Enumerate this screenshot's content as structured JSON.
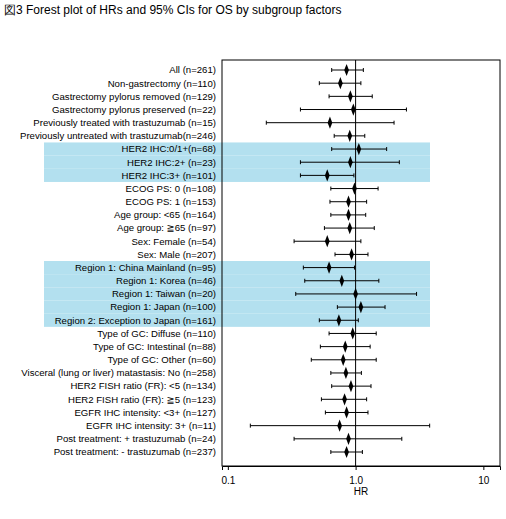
{
  "chart_data": {
    "type": "forest",
    "title": "図3 Forest plot of HRs and 95% CIs for OS by subgroup factors",
    "xlabel": "HR",
    "orientation": "horizontal",
    "log": "x",
    "marker": "diamond",
    "color": "#000000",
    "reference_line": 1,
    "xlim": [
      0.09,
      13.5
    ],
    "xticks": [
      0.1,
      {
        "value": 1,
        "label": "1.0"
      },
      10
    ],
    "categories": [
      "All (n=261)",
      "Non-gastrectomy (n=110)",
      "Gastrectomy pylorus removed (n=129)",
      "Gastrectomy pylorus preserved (n=22)",
      "Previously treated with trastuzumab (n=15)",
      "Previously untreated with trastuzumab(n=246)",
      "HER2 IHC:0/1+(n=68)",
      "HER2 IHC:2+ (n=23)",
      "HER2 IHC:3+ (n=101)",
      "ECOG PS: 0 (n=108)",
      "ECOG PS: 1 (n=153)",
      "Age group: <65 (n=164)",
      "Age group: ≧65 (n=97)",
      "Sex: Female (n=54)",
      "Sex: Male (n=207)",
      "Region 1: China Mainland (n=95)",
      "Region 1: Korea (n=46)",
      "Region 1: Taiwan (n=20)",
      "Region 1: Japan (n=100)",
      "Region 2: Exception to Japan (n=161)",
      "Type of GC: Diffuse (n=110)",
      "Type of GC: Intestinal (n=88)",
      "Type of GC: Other (n=60)",
      "Visceral (lung or liver) matastasis: No (n=258)",
      "HER2 FISH ratio (FR): <5 (n=134)",
      "HER2 FISH ratio (FR): ≧5 (n=123)",
      "EGFR IHC intensity: <3+ (n=127)",
      "EGFR IHC intensity: 3+ (n=11)",
      "Post treatment: + trastuzumab (n=24)",
      "Post treatment: - trastuzumab (n=237)"
    ],
    "values": [
      0.85,
      0.76,
      0.91,
      0.96,
      0.63,
      0.9,
      1.06,
      0.91,
      0.6,
      0.98,
      0.88,
      0.88,
      0.9,
      0.6,
      0.93,
      0.62,
      0.78,
      1.0,
      1.1,
      0.74,
      0.95,
      0.83,
      0.8,
      0.84,
      0.92,
      0.82,
      0.85,
      0.75,
      0.88,
      0.85
    ],
    "lower": [
      0.65,
      0.52,
      0.62,
      0.37,
      0.2,
      0.68,
      0.65,
      0.37,
      0.37,
      0.64,
      0.63,
      0.64,
      0.57,
      0.33,
      0.69,
      0.39,
      0.4,
      0.34,
      0.72,
      0.52,
      0.62,
      0.53,
      0.45,
      0.64,
      0.65,
      0.54,
      0.58,
      0.15,
      0.33,
      0.64
    ],
    "upper": [
      1.15,
      1.1,
      1.35,
      2.5,
      2.0,
      1.18,
      1.75,
      2.2,
      0.97,
      1.5,
      1.22,
      1.2,
      1.4,
      1.1,
      1.25,
      0.98,
      1.52,
      3.0,
      1.7,
      1.05,
      1.45,
      1.3,
      1.45,
      1.11,
      1.32,
      1.22,
      1.25,
      3.8,
      2.3,
      1.13
    ],
    "colors": [
      null,
      null,
      null,
      null,
      null,
      null,
      "#b3e0ef",
      "#b3e0ef",
      "#b3e0ef",
      null,
      null,
      null,
      null,
      null,
      null,
      "#b3e0ef",
      "#b3e0ef",
      "#b3e0ef",
      "#b3e0ef",
      "#b3e0ef",
      null,
      null,
      null,
      null,
      null,
      null,
      null,
      null,
      null,
      null
    ]
  }
}
